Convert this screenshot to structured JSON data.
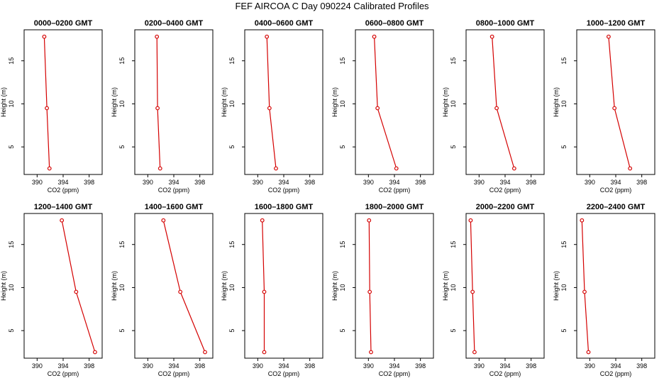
{
  "title": "FEF AIRCOA C  Day 090224  Calibrated Profiles",
  "colors": {
    "series": "#d40000",
    "axis": "#000000"
  },
  "chart_data": {
    "type": "line",
    "xlabel": "CO2 (ppm)",
    "ylabel": "Height (m)",
    "xlim": [
      388,
      400
    ],
    "ylim": [
      1.8,
      18.6
    ],
    "xticks": [
      "390",
      "394",
      "398"
    ],
    "xtick_values": [
      390,
      394,
      398
    ],
    "yticks": [
      "5",
      "10",
      "15"
    ],
    "ytick_values": [
      5,
      10,
      15
    ],
    "heights": [
      17.8,
      9.5,
      2.5
    ],
    "panels": [
      {
        "title": "0000–0200 GMT",
        "x": [
          391.1,
          391.5,
          391.9
        ]
      },
      {
        "title": "0200–0400 GMT",
        "x": [
          391.4,
          391.5,
          391.9
        ]
      },
      {
        "title": "0400–0600 GMT",
        "x": [
          391.4,
          391.8,
          392.8
        ]
      },
      {
        "title": "0600–0800 GMT",
        "x": [
          390.9,
          391.4,
          394.3
        ]
      },
      {
        "title": "0800–1000 GMT",
        "x": [
          392.0,
          392.7,
          395.4
        ]
      },
      {
        "title": "1000–1200 GMT",
        "x": [
          392.9,
          393.8,
          396.2
        ]
      },
      {
        "title": "1200–1400 GMT",
        "x": [
          393.8,
          396.0,
          398.9
        ]
      },
      {
        "title": "1400–1600 GMT",
        "x": [
          392.4,
          395.0,
          398.8
        ]
      },
      {
        "title": "1600–1800 GMT",
        "x": [
          390.7,
          391.0,
          391.0
        ]
      },
      {
        "title": "1800–2000 GMT",
        "x": [
          390.1,
          390.2,
          390.4
        ]
      },
      {
        "title": "2000–2200 GMT",
        "x": [
          388.7,
          389.0,
          389.3
        ]
      },
      {
        "title": "2200–2400 GMT",
        "x": [
          388.8,
          389.2,
          389.8
        ]
      }
    ]
  }
}
